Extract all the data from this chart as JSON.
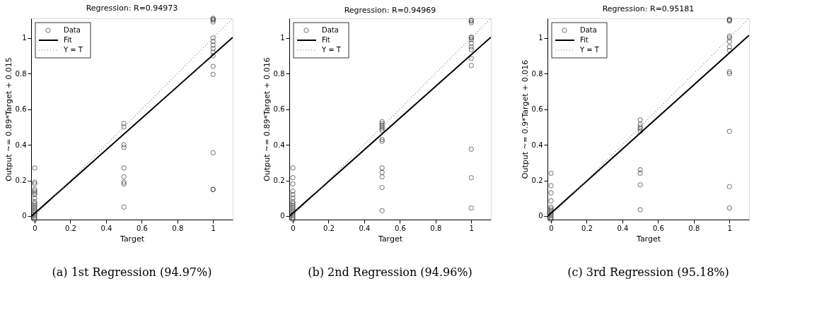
{
  "chart_data": [
    {
      "type": "scatter",
      "title": "Regression: R=0.94973",
      "xlabel": "Target",
      "ylabel": "Output ~= 0.89*Target + 0.015",
      "xlim": [
        -0.02,
        1.11
      ],
      "ylim": [
        -0.02,
        1.11
      ],
      "xticks": [
        0,
        0.2,
        0.4,
        0.6,
        0.8,
        1
      ],
      "yticks": [
        0,
        0.2,
        0.4,
        0.6,
        0.8,
        1
      ],
      "grid": false,
      "legend": "top left",
      "annotations": [
        "(a) 1st Regression (94.97%)"
      ],
      "series": [
        {
          "name": "Data",
          "color": "#000000",
          "marker": "circle",
          "x": [
            0,
            0,
            0,
            0,
            0,
            0,
            0,
            0,
            0,
            0,
            0,
            0,
            0,
            0,
            0,
            0,
            0,
            0,
            0,
            0.5,
            0.5,
            0.5,
            0.5,
            0.5,
            0.5,
            0.5,
            0.5,
            0.5,
            1,
            1,
            1,
            1,
            1,
            1,
            1,
            1,
            1,
            1,
            1,
            1,
            1,
            1,
            1
          ],
          "values": [
            0.27,
            0.19,
            0.18,
            0.15,
            0.14,
            0.13,
            0.12,
            0.1,
            0.08,
            0.07,
            0.06,
            0.05,
            0.04,
            0.03,
            0.02,
            0.01,
            0,
            -0.01,
            -0.02,
            0.52,
            0.5,
            0.4,
            0.385,
            0.27,
            0.22,
            0.19,
            0.18,
            0.05,
            1.11,
            1.105,
            1.1,
            1.09,
            1.0,
            0.98,
            0.96,
            0.94,
            0.92,
            0.9,
            0.84,
            0.795,
            0.355,
            0.15,
            0.148
          ]
        },
        {
          "name": "Fit",
          "type": "line",
          "color": "#000000",
          "line_style": "solid",
          "x": [
            -0.02,
            1.11
          ],
          "values": [
            -0.003,
            1.003
          ]
        },
        {
          "name": "Y = T",
          "type": "line",
          "color": "#808080",
          "line_style": "dotted",
          "x": [
            -0.02,
            1.11
          ],
          "values": [
            -0.02,
            1.11
          ]
        }
      ]
    },
    {
      "type": "scatter",
      "title": "Regression: R=0.94969",
      "xlabel": "Target",
      "ylabel": "Output ~= 0.89*Target + 0.016",
      "xlim": [
        -0.02,
        1.11
      ],
      "ylim": [
        -0.02,
        1.11
      ],
      "xticks": [
        0,
        0.2,
        0.4,
        0.6,
        0.8,
        1
      ],
      "yticks": [
        0,
        0.2,
        0.4,
        0.6,
        0.8,
        1
      ],
      "grid": false,
      "legend": "top left",
      "annotations": [
        "(b) 2nd Regression (94.96%)"
      ],
      "series": [
        {
          "name": "Data",
          "color": "#000000",
          "marker": "circle",
          "x": [
            0,
            0,
            0,
            0,
            0,
            0,
            0,
            0,
            0,
            0,
            0,
            0,
            0,
            0,
            0,
            0,
            0,
            0.5,
            0.5,
            0.5,
            0.5,
            0.5,
            0.5,
            0.5,
            0.5,
            0.5,
            0.5,
            0.5,
            0.5,
            0.5,
            1,
            1,
            1,
            1,
            1,
            1,
            1,
            1,
            1,
            1,
            1,
            1,
            1,
            1
          ],
          "values": [
            0.27,
            0.215,
            0.18,
            0.14,
            0.12,
            0.1,
            0.08,
            0.07,
            0.06,
            0.05,
            0.04,
            0.03,
            0.02,
            0.01,
            0,
            -0.01,
            -0.02,
            0.53,
            0.52,
            0.51,
            0.5,
            0.49,
            0.48,
            0.43,
            0.42,
            0.27,
            0.245,
            0.22,
            0.16,
            0.03,
            1.1,
            1.095,
            1.085,
            1.005,
            1.0,
            0.99,
            0.97,
            0.95,
            0.935,
            0.885,
            0.845,
            0.375,
            0.215,
            0.045
          ]
        },
        {
          "name": "Fit",
          "type": "line",
          "color": "#000000",
          "line_style": "solid",
          "x": [
            -0.02,
            1.11
          ],
          "values": [
            -0.002,
            1.004
          ]
        },
        {
          "name": "Y = T",
          "type": "line",
          "color": "#808080",
          "line_style": "dotted",
          "x": [
            -0.02,
            1.11
          ],
          "values": [
            -0.02,
            1.11
          ]
        }
      ]
    },
    {
      "type": "scatter",
      "title": "Regression: R=0.95181",
      "xlabel": "Target",
      "ylabel": "Output ~= 0.9*Target + 0.016",
      "xlim": [
        -0.02,
        1.11
      ],
      "ylim": [
        -0.02,
        1.11
      ],
      "xticks": [
        0,
        0.2,
        0.4,
        0.6,
        0.8,
        1
      ],
      "yticks": [
        0,
        0.2,
        0.4,
        0.6,
        0.8,
        1
      ],
      "grid": false,
      "legend": "top left",
      "annotations": [
        "(c) 3rd Regression (95.18%)"
      ],
      "series": [
        {
          "name": "Data",
          "color": "#000000",
          "marker": "circle",
          "x": [
            0,
            0,
            0,
            0,
            0,
            0,
            0,
            0,
            0,
            0,
            0,
            0,
            0.5,
            0.5,
            0.5,
            0.5,
            0.5,
            0.5,
            0.5,
            0.5,
            0.5,
            1,
            1,
            1,
            1,
            1,
            1,
            1,
            1,
            1,
            1,
            1,
            1,
            1
          ],
          "values": [
            0.24,
            0.17,
            0.13,
            0.085,
            0.05,
            0.04,
            0.03,
            0.02,
            0.01,
            0,
            -0.01,
            -0.02,
            0.54,
            0.515,
            0.5,
            0.49,
            0.475,
            0.26,
            0.24,
            0.175,
            0.035,
            1.105,
            1.1,
            1.095,
            1.01,
            1.0,
            0.98,
            0.95,
            0.93,
            0.81,
            0.8,
            0.475,
            0.165,
            0.045
          ]
        },
        {
          "name": "Fit",
          "type": "line",
          "color": "#000000",
          "line_style": "solid",
          "x": [
            -0.02,
            1.11
          ],
          "values": [
            -0.002,
            1.015
          ]
        },
        {
          "name": "Y = T",
          "type": "line",
          "color": "#808080",
          "line_style": "dotted",
          "x": [
            -0.02,
            1.11
          ],
          "values": [
            -0.02,
            1.11
          ]
        }
      ]
    }
  ]
}
